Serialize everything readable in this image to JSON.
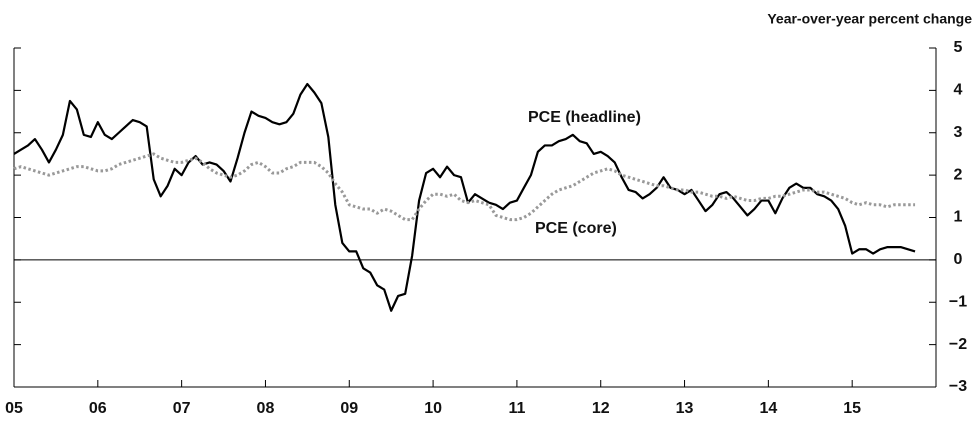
{
  "chart_data": {
    "type": "line",
    "y_axis_label": "Year-over-year percent change",
    "x": [
      2005,
      2005.083,
      2005.167,
      2005.25,
      2005.333,
      2005.417,
      2005.5,
      2005.583,
      2005.667,
      2005.75,
      2005.833,
      2005.917,
      2006,
      2006.083,
      2006.167,
      2006.25,
      2006.333,
      2006.417,
      2006.5,
      2006.583,
      2006.667,
      2006.75,
      2006.833,
      2006.917,
      2007,
      2007.083,
      2007.167,
      2007.25,
      2007.333,
      2007.417,
      2007.5,
      2007.583,
      2007.667,
      2007.75,
      2007.833,
      2007.917,
      2008,
      2008.083,
      2008.167,
      2008.25,
      2008.333,
      2008.417,
      2008.5,
      2008.583,
      2008.667,
      2008.75,
      2008.833,
      2008.917,
      2009,
      2009.083,
      2009.167,
      2009.25,
      2009.333,
      2009.417,
      2009.5,
      2009.583,
      2009.667,
      2009.75,
      2009.833,
      2009.917,
      2010,
      2010.083,
      2010.167,
      2010.25,
      2010.333,
      2010.417,
      2010.5,
      2010.583,
      2010.667,
      2010.75,
      2010.833,
      2010.917,
      2011,
      2011.083,
      2011.167,
      2011.25,
      2011.333,
      2011.417,
      2011.5,
      2011.583,
      2011.667,
      2011.75,
      2011.833,
      2011.917,
      2012,
      2012.083,
      2012.167,
      2012.25,
      2012.333,
      2012.417,
      2012.5,
      2012.583,
      2012.667,
      2012.75,
      2012.833,
      2012.917,
      2013,
      2013.083,
      2013.167,
      2013.25,
      2013.333,
      2013.417,
      2013.5,
      2013.583,
      2013.667,
      2013.75,
      2013.833,
      2013.917,
      2014,
      2014.083,
      2014.167,
      2014.25,
      2014.333,
      2014.417,
      2014.5,
      2014.583,
      2014.667,
      2014.75,
      2014.833,
      2014.917,
      2015,
      2015.083,
      2015.167,
      2015.25,
      2015.333,
      2015.417,
      2015.5,
      2015.583,
      2015.667,
      2015.75
    ],
    "series": [
      {
        "name": "PCE (headline)",
        "color": "#000000",
        "values": [
          2.5,
          2.6,
          2.7,
          2.85,
          2.6,
          2.3,
          2.6,
          2.95,
          3.75,
          3.55,
          2.95,
          2.9,
          3.25,
          2.95,
          2.85,
          3.0,
          3.15,
          3.3,
          3.25,
          3.15,
          1.9,
          1.5,
          1.75,
          2.15,
          2.0,
          2.3,
          2.45,
          2.25,
          2.3,
          2.25,
          2.1,
          1.85,
          2.4,
          3.0,
          3.5,
          3.4,
          3.35,
          3.25,
          3.2,
          3.25,
          3.45,
          3.9,
          4.15,
          3.95,
          3.7,
          2.9,
          1.3,
          0.4,
          0.2,
          0.2,
          -0.2,
          -0.3,
          -0.6,
          -0.7,
          -1.2,
          -0.85,
          -0.8,
          0.1,
          1.4,
          2.05,
          2.15,
          1.95,
          2.2,
          2.0,
          1.95,
          1.35,
          1.55,
          1.45,
          1.35,
          1.3,
          1.2,
          1.35,
          1.4,
          1.7,
          2.0,
          2.55,
          2.7,
          2.7,
          2.8,
          2.85,
          2.95,
          2.8,
          2.75,
          2.5,
          2.55,
          2.45,
          2.3,
          1.95,
          1.65,
          1.6,
          1.45,
          1.55,
          1.7,
          1.95,
          1.7,
          1.65,
          1.55,
          1.65,
          1.4,
          1.15,
          1.3,
          1.55,
          1.6,
          1.45,
          1.25,
          1.05,
          1.2,
          1.4,
          1.4,
          1.1,
          1.45,
          1.7,
          1.8,
          1.7,
          1.7,
          1.55,
          1.5,
          1.4,
          1.2,
          0.8,
          0.15,
          0.25,
          0.25,
          0.15,
          0.25,
          0.3,
          0.3,
          0.3,
          0.25,
          0.2
        ]
      },
      {
        "name": "PCE (core)",
        "color": "#999999",
        "values": [
          2.15,
          2.2,
          2.15,
          2.1,
          2.05,
          2.0,
          2.05,
          2.1,
          2.15,
          2.2,
          2.2,
          2.15,
          2.1,
          2.1,
          2.15,
          2.25,
          2.3,
          2.35,
          2.4,
          2.45,
          2.5,
          2.4,
          2.35,
          2.3,
          2.3,
          2.35,
          2.4,
          2.3,
          2.15,
          2.05,
          2.0,
          1.95,
          2.0,
          2.1,
          2.25,
          2.3,
          2.2,
          2.05,
          2.05,
          2.15,
          2.2,
          2.3,
          2.3,
          2.3,
          2.2,
          2.05,
          1.8,
          1.6,
          1.3,
          1.25,
          1.2,
          1.2,
          1.1,
          1.2,
          1.15,
          1.05,
          0.95,
          0.95,
          1.2,
          1.4,
          1.55,
          1.55,
          1.5,
          1.55,
          1.4,
          1.35,
          1.4,
          1.35,
          1.3,
          1.05,
          1.0,
          0.95,
          0.95,
          1.0,
          1.1,
          1.25,
          1.4,
          1.55,
          1.65,
          1.7,
          1.75,
          1.85,
          1.95,
          2.05,
          2.1,
          2.15,
          2.1,
          2.0,
          1.95,
          1.9,
          1.85,
          1.8,
          1.75,
          1.75,
          1.7,
          1.65,
          1.65,
          1.6,
          1.6,
          1.55,
          1.5,
          1.5,
          1.45,
          1.5,
          1.45,
          1.4,
          1.4,
          1.45,
          1.45,
          1.5,
          1.5,
          1.55,
          1.6,
          1.65,
          1.65,
          1.6,
          1.6,
          1.55,
          1.5,
          1.45,
          1.35,
          1.3,
          1.35,
          1.3,
          1.3,
          1.25,
          1.3,
          1.3,
          1.3,
          1.3
        ]
      }
    ],
    "xlim": [
      2005,
      2016
    ],
    "xticks": [
      {
        "value": 2005,
        "label": "05"
      },
      {
        "value": 2006,
        "label": "06"
      },
      {
        "value": 2007,
        "label": "07"
      },
      {
        "value": 2008,
        "label": "08"
      },
      {
        "value": 2009,
        "label": "09"
      },
      {
        "value": 2010,
        "label": "10"
      },
      {
        "value": 2011,
        "label": "11"
      },
      {
        "value": 2012,
        "label": "12"
      },
      {
        "value": 2013,
        "label": "13"
      },
      {
        "value": 2014,
        "label": "14"
      },
      {
        "value": 2015,
        "label": "15"
      }
    ],
    "ylim": [
      -3,
      5
    ],
    "yticks": [
      {
        "value": -3,
        "label": "−3"
      },
      {
        "value": -2,
        "label": "−2"
      },
      {
        "value": -1,
        "label": "−1"
      },
      0,
      1,
      2,
      3,
      4,
      5
    ]
  }
}
